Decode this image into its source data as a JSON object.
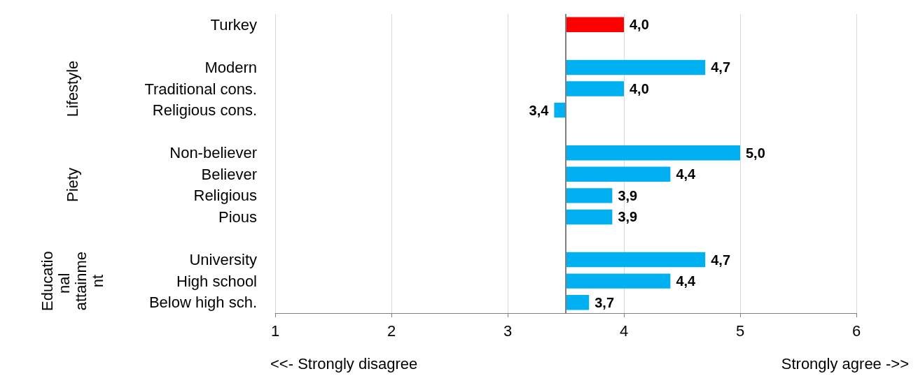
{
  "chart_data": {
    "type": "bar",
    "orientation": "horizontal",
    "categories": [
      "Turkey",
      null,
      "Modern",
      "Traditional cons.",
      "Religious cons.",
      null,
      "Non-believer",
      "Believer",
      "Religious",
      "Pious",
      null,
      "University",
      "High school",
      "Below high sch."
    ],
    "base": [
      3.5,
      null,
      3.5,
      3.5,
      3.5,
      null,
      3.5,
      3.5,
      3.5,
      3.5,
      null,
      3.5,
      3.5,
      3.5
    ],
    "values": [
      0.5,
      null,
      1.2,
      0.5,
      -0.1,
      null,
      1.5,
      0.9,
      0.4,
      0.4,
      null,
      1.2,
      0.9,
      0.2
    ],
    "value_labels": [
      "4,0",
      null,
      "4,7",
      "4,0",
      "3,4",
      null,
      "5,0",
      "4,4",
      "3,9",
      "3,9",
      null,
      "4,7",
      "4,4",
      "3,7"
    ],
    "colors": [
      "#ff0000",
      null,
      "#00b0f0",
      "#00b0f0",
      "#00b0f0",
      null,
      "#00b0f0",
      "#00b0f0",
      "#00b0f0",
      "#00b0f0",
      null,
      "#00b0f0",
      "#00b0f0",
      "#00b0f0"
    ],
    "xlim": [
      1,
      6
    ],
    "xticks": [
      1,
      2,
      3,
      4,
      5,
      6
    ],
    "grid": "x",
    "ref_lines": [
      {
        "axis": "x",
        "value": 3.5,
        "color": "#7f7f7f"
      }
    ],
    "annotations": [
      "Lifestyle",
      "Piety",
      "Educational attainment",
      "<<- Strongly disagree",
      "Strongly agree ->>"
    ]
  }
}
